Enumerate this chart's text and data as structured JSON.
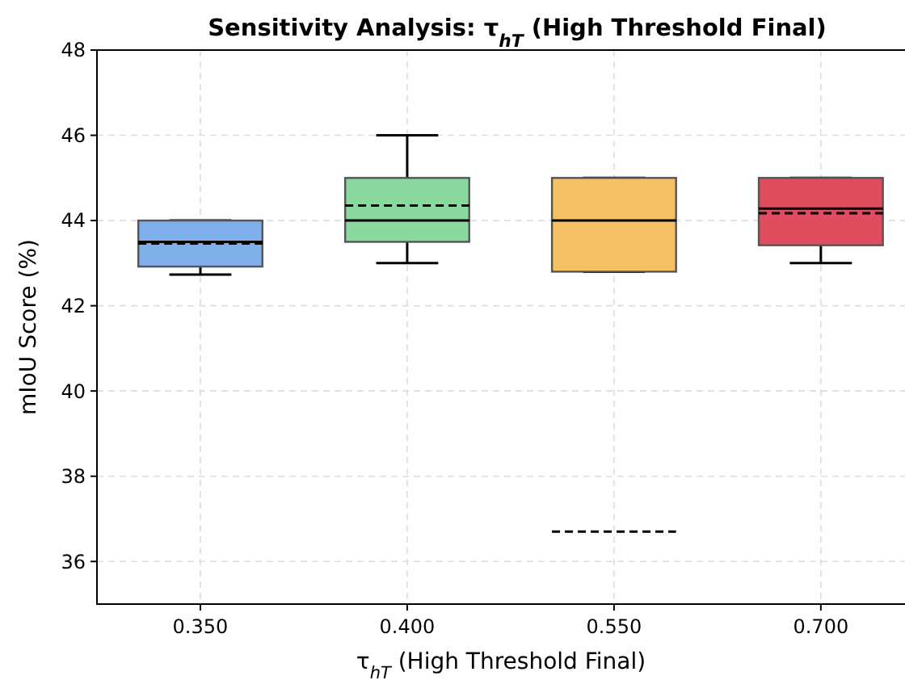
{
  "chart_data": {
    "type": "box",
    "title": "Sensitivity Analysis: τ$_{hT}$ (High Threshold Final)",
    "xlabel": "τ$_{hT}$ (High Threshold Final)",
    "ylabel": "mIoU Score (%)",
    "categories": [
      "0.350",
      "0.400",
      "0.550",
      "0.700"
    ],
    "colors": [
      "#80b0ea",
      "#88d8a0",
      "#f6c064",
      "#e04d5e"
    ],
    "boxes": [
      {
        "low": 42.73,
        "q1": 42.92,
        "median": 43.5,
        "q3": 44.0,
        "high": 44.0,
        "mean": 43.46
      },
      {
        "low": 43.0,
        "q1": 43.5,
        "median": 44.0,
        "q3": 45.0,
        "high": 46.0,
        "mean": 44.35
      },
      {
        "low": 42.8,
        "q1": 42.8,
        "median": 44.0,
        "q3": 45.0,
        "high": 45.0,
        "mean": 36.7
      },
      {
        "low": 43.0,
        "q1": 43.42,
        "median": 44.28,
        "q3": 45.0,
        "high": 45.0,
        "mean": 44.17
      }
    ],
    "ylim": [
      35,
      48
    ],
    "yticks": [
      36,
      38,
      40,
      42,
      44,
      46,
      48
    ],
    "grid": true
  }
}
